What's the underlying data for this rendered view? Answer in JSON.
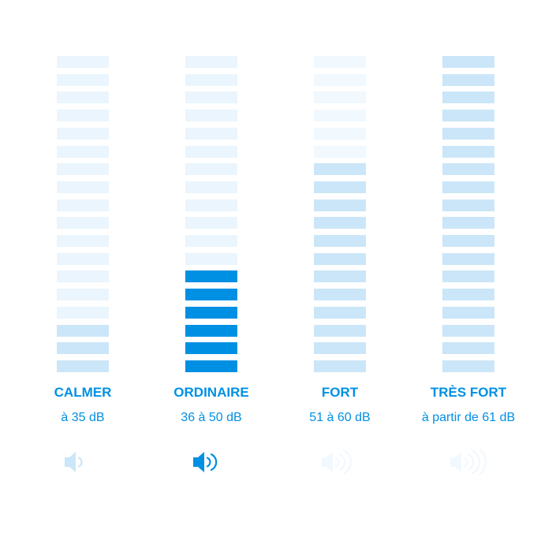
{
  "colors": {
    "active": "#0090e3",
    "medium": "#cbe6f8",
    "light": "#eaf5fd",
    "faint": "#f1f8fe"
  },
  "total_segments": 18,
  "levels": [
    {
      "title": "CALMER",
      "range": "à 35 dB",
      "filled": 3,
      "fill_color": "medium",
      "empty_color": "light",
      "icon": "speaker-1-wave-icon",
      "waves": 1,
      "icon_color": "medium"
    },
    {
      "title": "ORDINAIRE",
      "range": "36 à 50 dB",
      "filled": 6,
      "fill_color": "active",
      "empty_color": "light",
      "icon": "speaker-2-waves-icon",
      "waves": 2,
      "icon_color": "active"
    },
    {
      "title": "FORT",
      "range": "51 à 60 dB",
      "filled": 12,
      "fill_color": "medium",
      "empty_color": "faint",
      "icon": "speaker-3-waves-icon",
      "waves": 3,
      "icon_color": "faint"
    },
    {
      "title": "TRÈS FORT",
      "range": "à partir de 61 dB",
      "filled": 18,
      "fill_color": "medium",
      "empty_color": "light",
      "icon": "speaker-4-waves-icon",
      "waves": 4,
      "icon_color": "faint"
    }
  ]
}
